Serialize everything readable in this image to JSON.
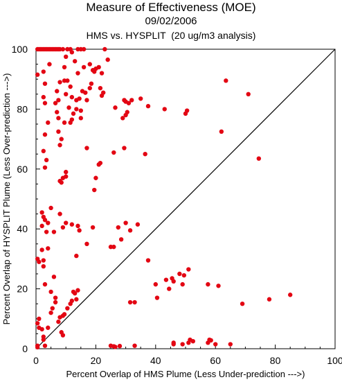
{
  "chart_data": {
    "type": "scatter",
    "title": "Measure of Effectiveness (MOE)",
    "subtitle": "09/02/2006",
    "subtitle2": "HMS vs. HYSPLIT  (20 ug/m3 analysis)",
    "xlabel": "Percent Overlap of HMS Plume (Less Under-prediction --->)",
    "ylabel": "Percent Overlap of HYSPLIT Plume (Less Over-prediction --->)",
    "xlim": [
      0,
      100
    ],
    "ylim": [
      0,
      100
    ],
    "xticks": [
      "0",
      "20",
      "40",
      "60",
      "80",
      "100"
    ],
    "yticks": [
      "0",
      "20",
      "40",
      "60",
      "80",
      "100"
    ],
    "grid": false,
    "reference_line": "y = x",
    "marker_color": "#e30613",
    "points": [
      [
        0.5,
        100
      ],
      [
        1,
        100
      ],
      [
        1.5,
        100
      ],
      [
        2,
        100
      ],
      [
        2.5,
        100
      ],
      [
        3,
        100
      ],
      [
        3.5,
        100
      ],
      [
        4,
        100
      ],
      [
        4.5,
        100
      ],
      [
        5,
        100
      ],
      [
        5.5,
        100
      ],
      [
        6,
        100
      ],
      [
        6.5,
        100
      ],
      [
        7,
        100
      ],
      [
        7.5,
        100
      ],
      [
        8,
        100
      ],
      [
        9,
        100
      ],
      [
        10.5,
        100
      ],
      [
        11.5,
        100
      ],
      [
        14,
        100
      ],
      [
        15,
        100
      ],
      [
        16,
        100
      ],
      [
        23,
        100
      ],
      [
        0.5,
        91.5
      ],
      [
        2.5,
        92.5
      ],
      [
        4.5,
        95
      ],
      [
        3,
        88.5
      ],
      [
        2.5,
        84
      ],
      [
        3,
        82
      ],
      [
        7,
        86
      ],
      [
        8,
        89
      ],
      [
        9.5,
        89.5
      ],
      [
        10.5,
        89.5
      ],
      [
        11.5,
        87.5
      ],
      [
        12,
        99
      ],
      [
        10,
        97.5
      ],
      [
        9.5,
        94
      ],
      [
        13,
        96
      ],
      [
        14,
        92
      ],
      [
        16,
        94
      ],
      [
        18,
        95
      ],
      [
        19,
        93
      ],
      [
        19.5,
        92.5
      ],
      [
        20,
        93.5
      ],
      [
        21,
        94
      ],
      [
        22,
        92
      ],
      [
        24,
        96.5
      ],
      [
        18.5,
        88.5
      ],
      [
        18,
        87
      ],
      [
        17,
        83
      ],
      [
        16.5,
        85.5
      ],
      [
        15.5,
        86
      ],
      [
        14.5,
        83.5
      ],
      [
        13.5,
        83
      ],
      [
        12,
        84
      ],
      [
        11,
        80.5
      ],
      [
        10,
        85
      ],
      [
        7.5,
        83
      ],
      [
        6.5,
        82
      ],
      [
        7,
        79
      ],
      [
        7.5,
        77
      ],
      [
        9.5,
        75.5
      ],
      [
        12.5,
        78.5
      ],
      [
        13.5,
        80
      ],
      [
        15,
        79.5
      ],
      [
        15,
        77
      ],
      [
        17,
        67
      ],
      [
        21.5,
        87
      ],
      [
        22.5,
        85.5
      ],
      [
        22,
        84.5
      ],
      [
        3,
        71.5
      ],
      [
        4,
        75.5
      ],
      [
        7.5,
        72.5
      ],
      [
        8,
        68
      ],
      [
        8.5,
        70
      ],
      [
        11.5,
        75.5
      ],
      [
        12,
        76.5
      ],
      [
        3.5,
        63
      ],
      [
        3,
        60.5
      ],
      [
        2.5,
        66
      ],
      [
        8,
        56
      ],
      [
        8.5,
        55.5
      ],
      [
        9,
        57
      ],
      [
        10,
        59
      ],
      [
        10,
        57.5
      ],
      [
        19.5,
        53
      ],
      [
        20,
        57
      ],
      [
        21,
        61.5
      ],
      [
        21.5,
        62
      ],
      [
        26,
        65.5
      ],
      [
        2,
        45.5
      ],
      [
        2,
        41
      ],
      [
        2.5,
        44
      ],
      [
        3,
        43
      ],
      [
        3.5,
        39
      ],
      [
        4,
        42
      ],
      [
        5,
        47
      ],
      [
        6,
        39
      ],
      [
        8,
        45
      ],
      [
        9,
        40.5
      ],
      [
        10,
        42
      ],
      [
        12,
        41.5
      ],
      [
        14,
        41
      ],
      [
        14.5,
        39.5
      ],
      [
        19,
        40.5
      ],
      [
        17,
        35
      ],
      [
        2,
        33
      ],
      [
        2.5,
        29.5
      ],
      [
        4,
        33.5
      ],
      [
        13.5,
        31
      ],
      [
        25,
        34
      ],
      [
        26,
        34
      ],
      [
        27.5,
        40.5
      ],
      [
        28.5,
        36.5
      ],
      [
        30,
        42
      ],
      [
        31.5,
        39.5
      ],
      [
        34,
        41.5
      ],
      [
        36.5,
        65
      ],
      [
        0.5,
        30
      ],
      [
        1,
        29
      ],
      [
        2.5,
        27.5
      ],
      [
        3,
        21.5
      ],
      [
        5,
        19
      ],
      [
        6,
        24
      ],
      [
        1,
        10
      ],
      [
        0.5,
        8.5
      ],
      [
        1,
        7
      ],
      [
        2,
        6.5
      ],
      [
        2.5,
        4
      ],
      [
        2.5,
        3
      ],
      [
        4,
        7
      ],
      [
        5,
        12
      ],
      [
        5.5,
        13.5
      ],
      [
        6.5,
        15.5
      ],
      [
        6.5,
        17
      ],
      [
        7.5,
        9
      ],
      [
        8,
        10.5
      ],
      [
        9,
        11
      ],
      [
        9.5,
        11.5
      ],
      [
        8.5,
        5.5
      ],
      [
        9,
        4.5
      ],
      [
        10.5,
        13.5
      ],
      [
        11.5,
        15
      ],
      [
        12,
        16
      ],
      [
        13.5,
        16.5
      ],
      [
        12.5,
        19
      ],
      [
        13,
        18.5
      ],
      [
        14,
        19.5
      ],
      [
        0.5,
        1
      ],
      [
        0.5,
        0.5
      ],
      [
        3,
        1
      ],
      [
        25,
        1
      ],
      [
        26,
        0.8
      ],
      [
        26.5,
        0.6
      ],
      [
        28,
        0.9
      ],
      [
        33,
        1
      ],
      [
        46,
        1.5
      ],
      [
        46,
        2
      ],
      [
        49,
        1.5
      ],
      [
        51,
        2
      ],
      [
        51.5,
        3
      ],
      [
        52.5,
        2.5
      ],
      [
        57.5,
        2
      ],
      [
        58,
        3
      ],
      [
        58.5,
        2.8
      ],
      [
        60,
        1.5
      ],
      [
        65,
        1.5
      ],
      [
        26.5,
        80.5
      ],
      [
        29,
        77
      ],
      [
        29.5,
        83
      ],
      [
        30,
        82.5
      ],
      [
        30.5,
        79
      ],
      [
        31,
        82
      ],
      [
        30,
        78
      ],
      [
        29.5,
        67
      ],
      [
        32,
        83
      ],
      [
        35,
        83.5
      ],
      [
        37.5,
        81
      ],
      [
        43,
        80
      ],
      [
        50,
        78.5
      ],
      [
        50.5,
        79.5
      ],
      [
        37.5,
        29.5
      ],
      [
        31.5,
        15.5
      ],
      [
        33,
        15.5
      ],
      [
        40,
        21.5
      ],
      [
        40.5,
        17
      ],
      [
        43.5,
        23
      ],
      [
        44.5,
        20
      ],
      [
        45.5,
        23.5
      ],
      [
        46,
        22.5
      ],
      [
        48,
        25
      ],
      [
        49,
        21.5
      ],
      [
        49.5,
        24.5
      ],
      [
        51,
        26.5
      ],
      [
        57.5,
        21.5
      ],
      [
        61,
        21
      ],
      [
        62,
        72.5
      ],
      [
        63.5,
        89.5
      ],
      [
        71,
        85
      ],
      [
        74.5,
        63.5
      ],
      [
        69,
        15
      ],
      [
        78,
        16.5
      ],
      [
        85,
        18
      ]
    ]
  }
}
